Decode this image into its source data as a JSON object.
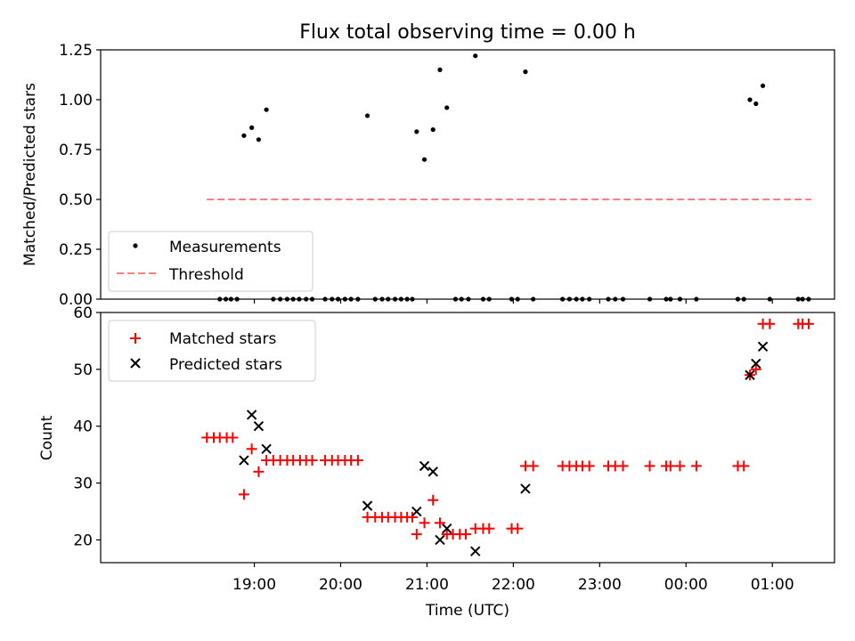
{
  "chart_data": [
    {
      "type": "scatter",
      "title": "Flux total observing time = 0.00 h",
      "ylabel": "Matched/Predicted stars",
      "ylim": [
        0,
        1.25
      ],
      "yticks": [
        "0.00",
        "0.25",
        "0.50",
        "0.75",
        "1.00",
        "1.25"
      ],
      "x_unit": "hours since 18:00 UTC",
      "legend": {
        "position": "lower-left"
      },
      "series": [
        {
          "name": "Measurements",
          "marker": "dot",
          "color": "#000000",
          "points": [
            [
              0.6,
              0.0
            ],
            [
              0.67,
              0.0
            ],
            [
              0.73,
              0.0
            ],
            [
              0.8,
              0.0
            ],
            [
              0.88,
              0.82
            ],
            [
              0.97,
              0.86
            ],
            [
              1.05,
              0.8
            ],
            [
              1.14,
              0.95
            ],
            [
              1.22,
              0.0
            ],
            [
              1.3,
              0.0
            ],
            [
              1.38,
              0.0
            ],
            [
              1.45,
              0.0
            ],
            [
              1.52,
              0.0
            ],
            [
              1.6,
              0.0
            ],
            [
              1.67,
              0.0
            ],
            [
              1.82,
              0.0
            ],
            [
              1.9,
              0.0
            ],
            [
              1.97,
              0.0
            ],
            [
              2.05,
              0.0
            ],
            [
              2.12,
              0.0
            ],
            [
              2.2,
              0.0
            ],
            [
              2.31,
              0.92
            ],
            [
              2.4,
              0.0
            ],
            [
              2.48,
              0.0
            ],
            [
              2.55,
              0.0
            ],
            [
              2.63,
              0.0
            ],
            [
              2.7,
              0.0
            ],
            [
              2.77,
              0.0
            ],
            [
              2.83,
              0.0
            ],
            [
              2.88,
              0.84
            ],
            [
              2.97,
              0.7
            ],
            [
              3.07,
              0.85
            ],
            [
              3.15,
              1.15
            ],
            [
              3.23,
              0.96
            ],
            [
              3.33,
              0.0
            ],
            [
              3.4,
              0.0
            ],
            [
              3.48,
              0.0
            ],
            [
              3.56,
              1.22
            ],
            [
              3.65,
              0.0
            ],
            [
              3.72,
              0.0
            ],
            [
              3.98,
              0.0
            ],
            [
              4.05,
              0.0
            ],
            [
              4.14,
              1.14
            ],
            [
              4.23,
              0.0
            ],
            [
              4.57,
              0.0
            ],
            [
              4.65,
              0.0
            ],
            [
              4.73,
              0.0
            ],
            [
              4.8,
              0.0
            ],
            [
              4.88,
              0.0
            ],
            [
              5.1,
              0.0
            ],
            [
              5.18,
              0.0
            ],
            [
              5.27,
              0.0
            ],
            [
              5.58,
              0.0
            ],
            [
              5.77,
              0.0
            ],
            [
              5.82,
              0.0
            ],
            [
              5.93,
              0.0
            ],
            [
              6.12,
              0.0
            ],
            [
              6.6,
              0.0
            ],
            [
              6.67,
              0.0
            ],
            [
              6.74,
              1.0
            ],
            [
              6.81,
              0.98
            ],
            [
              6.89,
              1.07
            ],
            [
              6.97,
              0.0
            ],
            [
              7.3,
              0.0
            ],
            [
              7.35,
              0.0
            ],
            [
              7.42,
              0.0
            ]
          ]
        },
        {
          "name": "Threshold",
          "line_style": "dashed",
          "color": "#ff7f7f",
          "points": [
            [
              0.45,
              0.5
            ],
            [
              7.45,
              0.5
            ]
          ]
        }
      ]
    },
    {
      "type": "scatter",
      "title": "",
      "xlabel": "Time (UTC)",
      "ylabel": "Count",
      "xlim": [
        -0.78,
        7.72
      ],
      "ylim": [
        16,
        60
      ],
      "yticks": [
        "20",
        "30",
        "40",
        "50",
        "60"
      ],
      "xticks": [
        {
          "x": 1,
          "label": "19:00"
        },
        {
          "x": 2,
          "label": "20:00"
        },
        {
          "x": 3,
          "label": "21:00"
        },
        {
          "x": 4,
          "label": "22:00"
        },
        {
          "x": 5,
          "label": "23:00"
        },
        {
          "x": 6,
          "label": "00:00"
        },
        {
          "x": 7,
          "label": "01:00"
        }
      ],
      "legend": {
        "position": "top-left"
      },
      "series": [
        {
          "name": "Matched stars",
          "marker": "plus",
          "color": "#ff0000",
          "points": [
            [
              0.45,
              38
            ],
            [
              0.53,
              38
            ],
            [
              0.6,
              38
            ],
            [
              0.68,
              38
            ],
            [
              0.75,
              38
            ],
            [
              0.88,
              28
            ],
            [
              0.97,
              36
            ],
            [
              1.05,
              32
            ],
            [
              1.14,
              34
            ],
            [
              1.22,
              34
            ],
            [
              1.3,
              34
            ],
            [
              1.38,
              34
            ],
            [
              1.45,
              34
            ],
            [
              1.53,
              34
            ],
            [
              1.6,
              34
            ],
            [
              1.67,
              34
            ],
            [
              1.82,
              34
            ],
            [
              1.9,
              34
            ],
            [
              1.97,
              34
            ],
            [
              2.05,
              34
            ],
            [
              2.12,
              34
            ],
            [
              2.2,
              34
            ],
            [
              2.31,
              24
            ],
            [
              2.4,
              24
            ],
            [
              2.48,
              24
            ],
            [
              2.55,
              24
            ],
            [
              2.63,
              24
            ],
            [
              2.7,
              24
            ],
            [
              2.77,
              24
            ],
            [
              2.83,
              24
            ],
            [
              2.88,
              21
            ],
            [
              2.97,
              23
            ],
            [
              3.07,
              27
            ],
            [
              3.15,
              23
            ],
            [
              3.23,
              21
            ],
            [
              3.3,
              21
            ],
            [
              3.38,
              21
            ],
            [
              3.45,
              21
            ],
            [
              3.56,
              22
            ],
            [
              3.65,
              22
            ],
            [
              3.72,
              22
            ],
            [
              3.98,
              22
            ],
            [
              4.05,
              22
            ],
            [
              4.14,
              33
            ],
            [
              4.23,
              33
            ],
            [
              4.57,
              33
            ],
            [
              4.65,
              33
            ],
            [
              4.73,
              33
            ],
            [
              4.8,
              33
            ],
            [
              4.88,
              33
            ],
            [
              5.1,
              33
            ],
            [
              5.18,
              33
            ],
            [
              5.27,
              33
            ],
            [
              5.58,
              33
            ],
            [
              5.77,
              33
            ],
            [
              5.82,
              33
            ],
            [
              5.93,
              33
            ],
            [
              6.12,
              33
            ],
            [
              6.6,
              33
            ],
            [
              6.67,
              33
            ],
            [
              6.74,
              49
            ],
            [
              6.81,
              50
            ],
            [
              6.89,
              58
            ],
            [
              6.97,
              58
            ],
            [
              7.3,
              58
            ],
            [
              7.35,
              58
            ],
            [
              7.42,
              58
            ]
          ]
        },
        {
          "name": "Predicted stars",
          "marker": "x",
          "color": "#000000",
          "points": [
            [
              0.88,
              34
            ],
            [
              0.97,
              42
            ],
            [
              1.05,
              40
            ],
            [
              1.14,
              36
            ],
            [
              2.31,
              26
            ],
            [
              2.88,
              25
            ],
            [
              2.97,
              33
            ],
            [
              3.07,
              32
            ],
            [
              3.15,
              20
            ],
            [
              3.23,
              22
            ],
            [
              3.56,
              18
            ],
            [
              4.14,
              29
            ],
            [
              6.74,
              49
            ],
            [
              6.81,
              51
            ],
            [
              6.89,
              54
            ]
          ]
        }
      ]
    }
  ]
}
